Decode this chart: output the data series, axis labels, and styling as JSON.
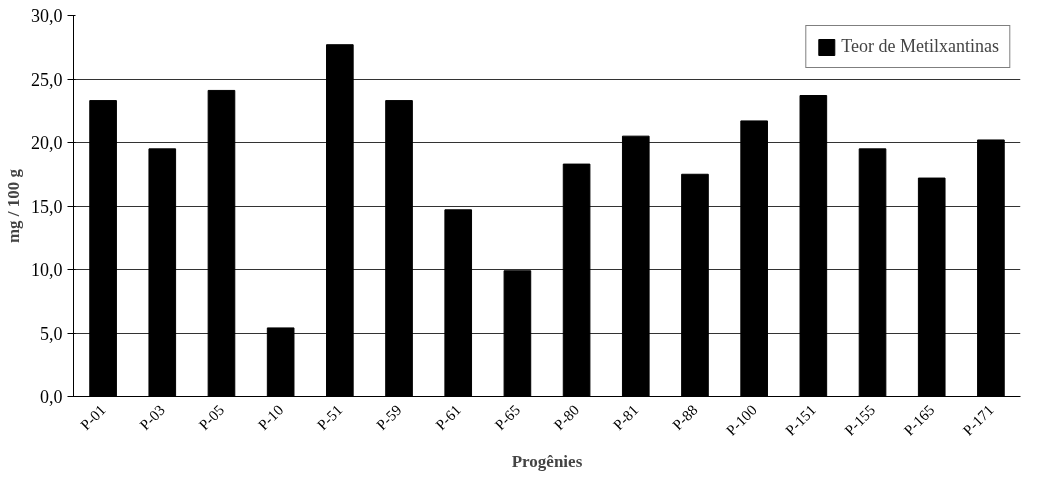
{
  "chart_data": {
    "type": "bar",
    "xlabel": "Progênies",
    "ylabel": "mg / 100 g",
    "categories": [
      "P-01",
      "P-03",
      "P-05",
      "P-10",
      "P-51",
      "P-59",
      "P-61",
      "P-65",
      "P-80",
      "P-81",
      "P-88",
      "P-100",
      "P-151",
      "P-155",
      "P-165",
      "P-171"
    ],
    "series": [
      {
        "name": "Teor de Metilxantinas",
        "color": "#000000",
        "values": [
          23.3,
          19.5,
          24.1,
          5.4,
          27.7,
          23.3,
          14.7,
          9.9,
          18.3,
          20.5,
          17.5,
          21.7,
          23.7,
          19.5,
          17.2,
          20.2
        ]
      }
    ],
    "ylim": [
      0,
      30
    ],
    "yticks": [
      {
        "value": 0,
        "label": "0,0"
      },
      {
        "value": 5,
        "label": "5,0"
      },
      {
        "value": 10,
        "label": "10,0"
      },
      {
        "value": 15,
        "label": "15,0"
      },
      {
        "value": 20,
        "label": "20,0"
      },
      {
        "value": 25,
        "label": "25,0"
      },
      {
        "value": 30,
        "label": "30,0"
      }
    ],
    "grid": "y",
    "legend": "top right"
  }
}
